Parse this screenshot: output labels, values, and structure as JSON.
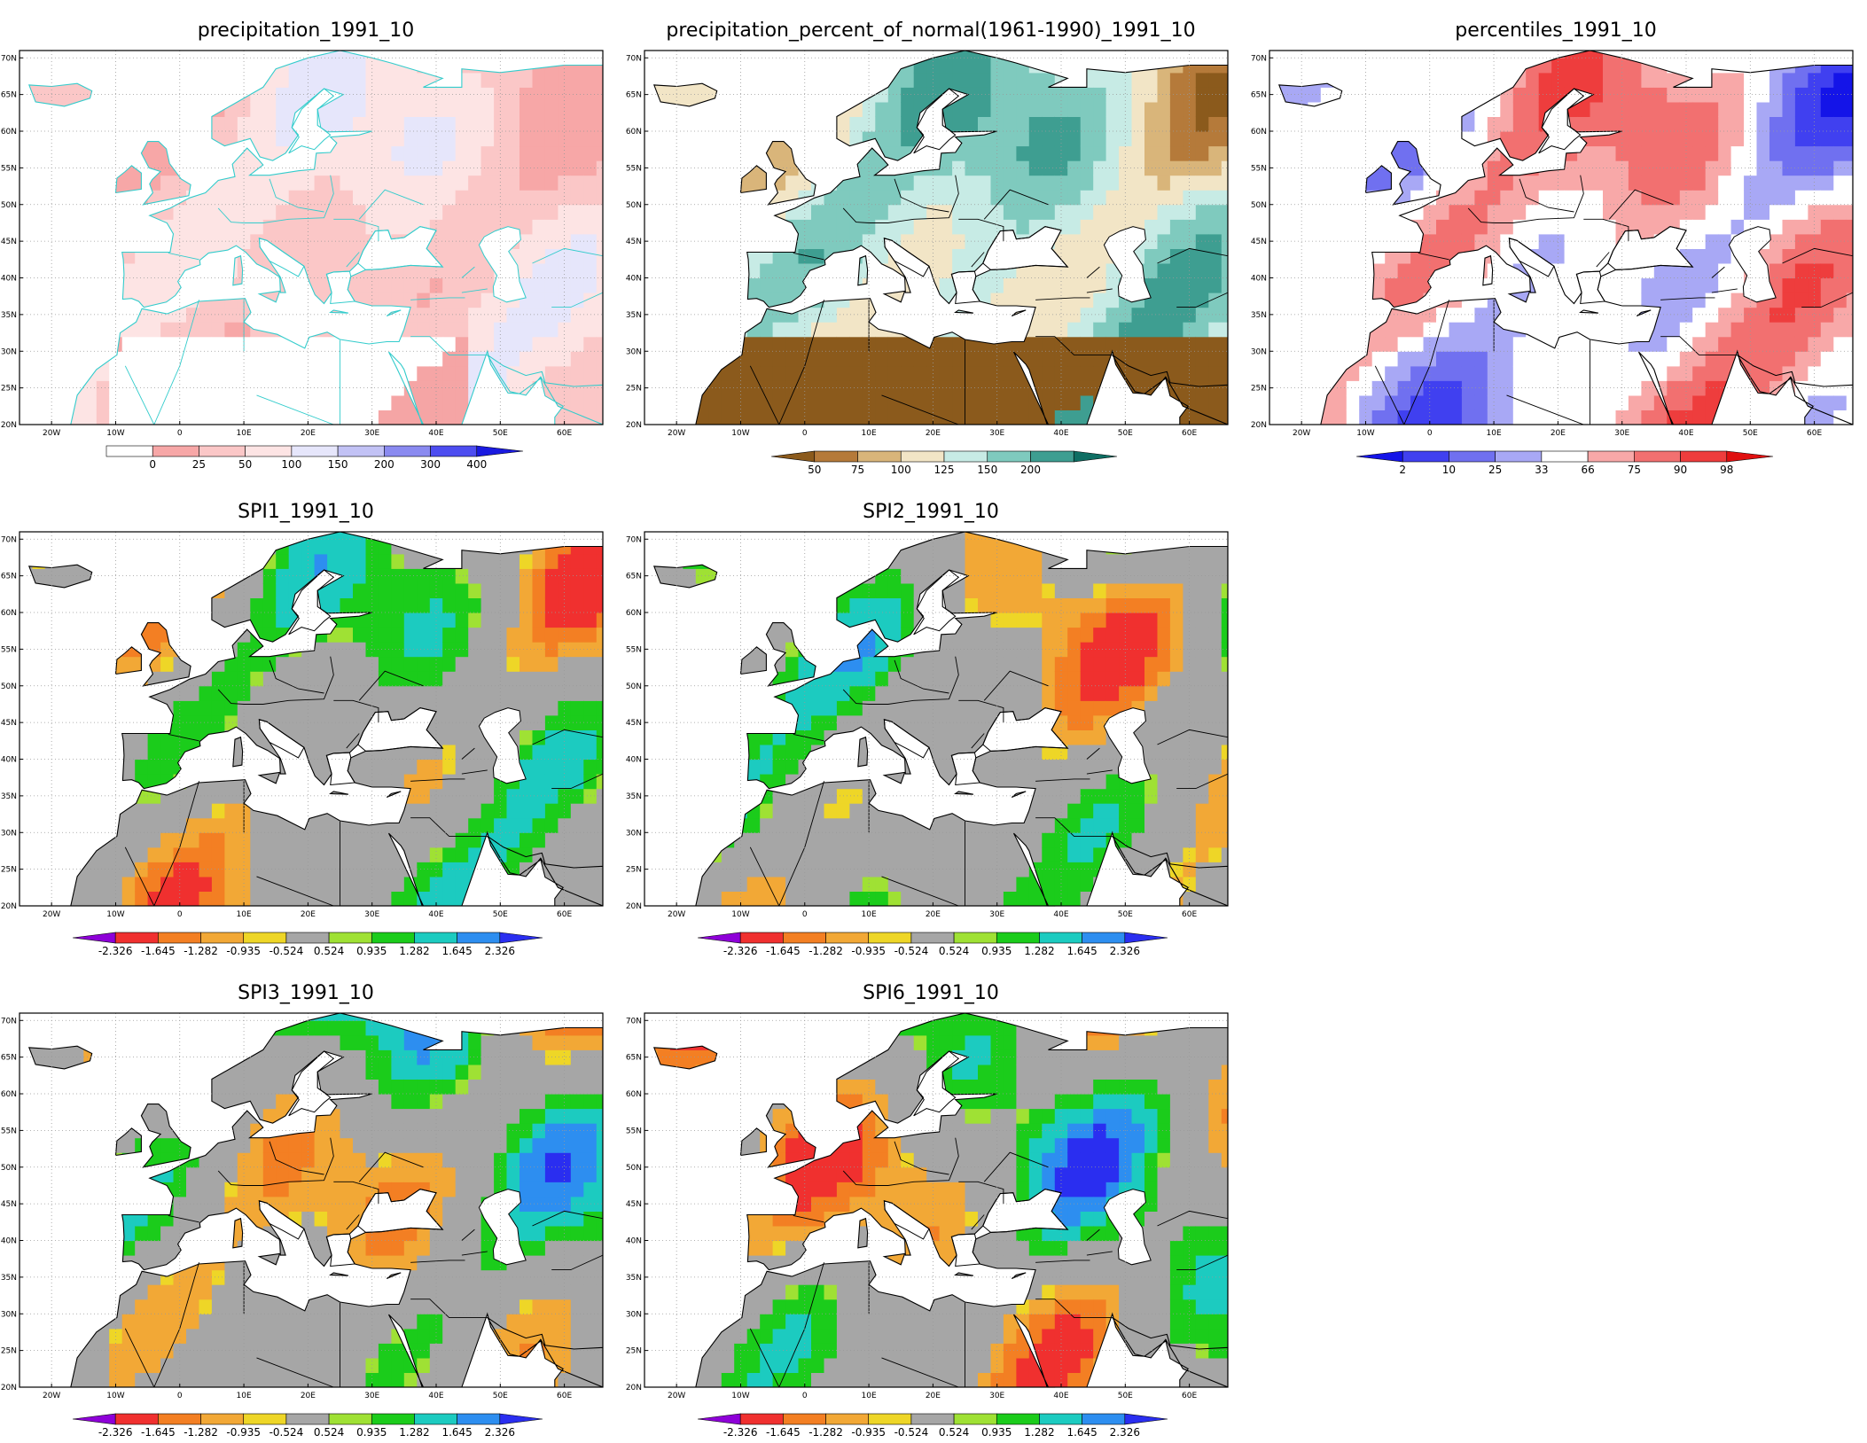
{
  "lat_ticks": [
    "70N",
    "65N",
    "60N",
    "55N",
    "50N",
    "45N",
    "40N",
    "35N",
    "30N",
    "25N",
    "20N"
  ],
  "lon_ticks": [
    "20W",
    "10W",
    "0",
    "10E",
    "20E",
    "30E",
    "40E",
    "50E",
    "60E"
  ],
  "spi_colors": [
    "#8e00d8",
    "#f0302f",
    "#f37f23",
    "#f2a836",
    "#eed627",
    "#a6a6a6",
    "#9fe134",
    "#1bcc1b",
    "#1ccbc0",
    "#2d8ef0",
    "#2a2ef0"
  ],
  "panels": [
    {
      "id": "precip",
      "title": "precipitation_1991_10",
      "style": "precip",
      "coast": "#33cccc",
      "colorbar": {
        "labels": [
          "0",
          "25",
          "50",
          "100",
          "150",
          "200",
          "300",
          "400"
        ],
        "colors": [
          "#ffffff",
          "#f7a7a7",
          "#fbc7c7",
          "#fde4e4",
          "#e6e6fb",
          "#c2c2f5",
          "#8a8af0",
          "#4d4df0",
          "#1a1ae0"
        ],
        "left_arrow": false,
        "right_arrow": true
      }
    },
    {
      "id": "pct",
      "title": "precipitation_percent_of_normal(1961-1990)_1991_10",
      "style": "pct",
      "coast": "#000000",
      "colorbar": {
        "labels": [
          "50",
          "75",
          "100",
          "125",
          "150",
          "200"
        ],
        "colors": [
          "#8b5a1c",
          "#b57a3a",
          "#d9b57a",
          "#f2e5c6",
          "#c7ebe5",
          "#7fcabe",
          "#3e9e91",
          "#0e6e63"
        ],
        "left_arrow": true,
        "right_arrow": true
      }
    },
    {
      "id": "perc",
      "title": "percentiles_1991_10",
      "style": "perc",
      "coast": "#000000",
      "colorbar": {
        "labels": [
          "2",
          "10",
          "25",
          "33",
          "66",
          "75",
          "90",
          "98"
        ],
        "colors": [
          "#1414e8",
          "#4040f0",
          "#7070f0",
          "#a8a8f5",
          "#ffffff",
          "#f8a8a8",
          "#f27070",
          "#ee3d3d",
          "#e01010"
        ],
        "left_arrow": true,
        "right_arrow": true
      }
    },
    {
      "id": "spi1",
      "title": "SPI1_1991_10",
      "style": "spi",
      "coast": "#000000",
      "seed": 1,
      "colorbar": {
        "labels": [
          "-2.326",
          "-1.645",
          "-1.282",
          "-0.935",
          "-0.524",
          "0.524",
          "0.935",
          "1.282",
          "1.645",
          "2.326"
        ],
        "spi": true,
        "left_arrow": true,
        "right_arrow": true
      }
    },
    {
      "id": "spi2",
      "title": "SPI2_1991_10",
      "style": "spi",
      "coast": "#000000",
      "seed": 2,
      "colorbar": {
        "labels": [
          "-2.326",
          "-1.645",
          "-1.282",
          "-0.935",
          "-0.524",
          "0.524",
          "0.935",
          "1.282",
          "1.645",
          "2.326"
        ],
        "spi": true,
        "left_arrow": true,
        "right_arrow": true
      }
    },
    {
      "id": "spi3",
      "title": "SPI3_1991_10",
      "style": "spi",
      "coast": "#000000",
      "seed": 3,
      "colorbar": {
        "labels": [
          "-2.326",
          "-1.645",
          "-1.282",
          "-0.935",
          "-0.524",
          "0.524",
          "0.935",
          "1.282",
          "1.645",
          "2.326"
        ],
        "spi": true,
        "left_arrow": true,
        "right_arrow": true
      }
    },
    {
      "id": "spi6",
      "title": "SPI6_1991_10",
      "style": "spi",
      "coast": "#000000",
      "seed": 6,
      "colorbar": {
        "labels": [
          "-2.326",
          "-1.645",
          "-1.282",
          "-0.935",
          "-0.524",
          "0.524",
          "0.935",
          "1.282",
          "1.645",
          "2.326"
        ],
        "spi": true,
        "left_arrow": true,
        "right_arrow": true
      }
    }
  ]
}
